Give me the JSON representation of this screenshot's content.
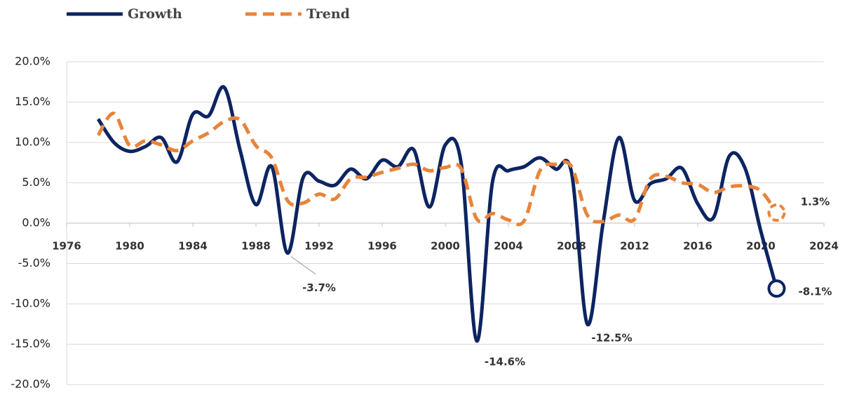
{
  "chart_data": {
    "type": "line",
    "x": [
      1978,
      1979,
      1980,
      1981,
      1982,
      1983,
      1984,
      1985,
      1986,
      1987,
      1988,
      1989,
      1990,
      1991,
      1992,
      1993,
      1994,
      1995,
      1996,
      1997,
      1998,
      1999,
      2000,
      2001,
      2002,
      2003,
      2004,
      2005,
      2006,
      2007,
      2008,
      2009,
      2010,
      2011,
      2012,
      2013,
      2014,
      2015,
      2016,
      2017,
      2018,
      2019,
      2020,
      2021
    ],
    "series": [
      {
        "name": "Growth",
        "color": "#0c2461",
        "dashed": false,
        "values": [
          12.9,
          10.0,
          8.9,
          9.5,
          10.6,
          7.6,
          13.5,
          13.3,
          16.8,
          9.0,
          2.3,
          7.0,
          -3.7,
          5.7,
          5.2,
          4.7,
          6.7,
          5.5,
          7.8,
          7.0,
          9.1,
          2.0,
          9.7,
          7.5,
          -14.6,
          5.2,
          6.5,
          7.0,
          8.1,
          6.7,
          6.3,
          -12.5,
          0.0,
          10.6,
          2.8,
          4.9,
          5.5,
          6.8,
          2.4,
          0.7,
          8.3,
          6.8,
          -1.0,
          -8.1
        ],
        "value_labels": [
          null,
          null,
          null,
          null,
          null,
          null,
          null,
          null,
          null,
          null,
          null,
          null,
          "-3.7%",
          null,
          null,
          null,
          null,
          null,
          null,
          null,
          null,
          null,
          null,
          null,
          "-14.6%",
          null,
          null,
          null,
          null,
          null,
          null,
          "-12.5%",
          null,
          null,
          null,
          null,
          null,
          null,
          null,
          null,
          null,
          null,
          null,
          "-8.1%"
        ]
      },
      {
        "name": "Trend",
        "color": "#e8843a",
        "dashed": true,
        "values": [
          10.9,
          13.6,
          9.6,
          10.2,
          9.7,
          9.0,
          10.2,
          11.2,
          12.6,
          12.8,
          9.6,
          8.1,
          2.8,
          2.5,
          3.6,
          3.0,
          5.5,
          5.7,
          6.3,
          6.8,
          7.3,
          6.5,
          6.9,
          6.8,
          0.5,
          1.2,
          0.4,
          0.3,
          6.5,
          7.3,
          7.0,
          1.0,
          0.2,
          1.0,
          0.5,
          5.5,
          5.8,
          5.0,
          4.8,
          3.8,
          4.5,
          4.6,
          4.0,
          1.3
        ],
        "value_labels": [
          null,
          null,
          null,
          null,
          null,
          null,
          null,
          null,
          null,
          null,
          null,
          null,
          null,
          null,
          null,
          null,
          null,
          null,
          null,
          null,
          null,
          null,
          null,
          null,
          null,
          null,
          null,
          null,
          null,
          null,
          null,
          null,
          null,
          null,
          null,
          null,
          null,
          null,
          null,
          null,
          null,
          null,
          null,
          "1.3%"
        ]
      }
    ],
    "xlim": [
      1976,
      2024
    ],
    "xticks": [
      1976,
      1980,
      1984,
      1988,
      1992,
      1996,
      2000,
      2004,
      2008,
      2012,
      2016,
      2020,
      2024
    ],
    "ylim": [
      -20,
      20
    ],
    "yticks": [
      {
        "value": -20,
        "label": "-20.0%"
      },
      {
        "value": -15,
        "label": "-15.0%"
      },
      {
        "value": -10,
        "label": "-10.0%"
      },
      {
        "value": -5,
        "label": "-5.0%"
      },
      {
        "value": 0,
        "label": "0.0%"
      },
      {
        "value": 5,
        "label": "5.0%"
      },
      {
        "value": 10,
        "label": "10.0%"
      },
      {
        "value": 15,
        "label": "15.0%"
      },
      {
        "value": 20,
        "label": "20.0%"
      }
    ],
    "grid": true
  }
}
